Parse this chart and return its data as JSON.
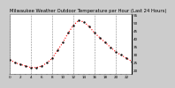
{
  "title": "Milwaukee Weather Outdoor Temperature per Hour (Last 24 Hours)",
  "hours": [
    0,
    1,
    2,
    3,
    4,
    5,
    6,
    7,
    8,
    9,
    10,
    11,
    12,
    13,
    14,
    15,
    16,
    17,
    18,
    19,
    20,
    21,
    22,
    23
  ],
  "temps": [
    27,
    25,
    24,
    23,
    22,
    22,
    23,
    25,
    28,
    33,
    38,
    44,
    49,
    52,
    51,
    48,
    44,
    41,
    38,
    35,
    32,
    30,
    28,
    26
  ],
  "line_color": "#ff0000",
  "marker_color": "#111111",
  "bg_color": "#cccccc",
  "plot_bg_color": "#ffffff",
  "grid_color": "#888888",
  "ylim": [
    18,
    56
  ],
  "yticks": [
    20,
    25,
    30,
    35,
    40,
    45,
    50,
    55
  ],
  "ytick_labels": [
    "20",
    "25",
    "30",
    "35",
    "40",
    "45",
    "50",
    "55"
  ],
  "title_fontsize": 3.8,
  "tick_fontsize": 3.0,
  "grid_x_positions": [
    0,
    4,
    8,
    12,
    16,
    20
  ]
}
